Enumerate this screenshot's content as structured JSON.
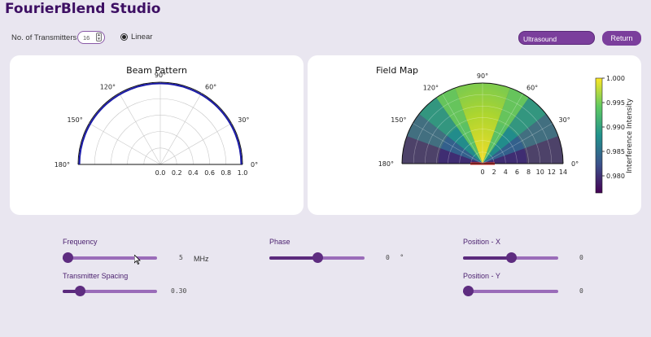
{
  "app": {
    "title": "FourierBlend Studio"
  },
  "toolbar": {
    "transmitters_label": "No. of Transmitters",
    "transmitters_value": "16",
    "layout_option": "Linear",
    "preset_value": "Ultrasound",
    "return_label": "Return"
  },
  "beam_panel": {
    "title": "Beam Pattern",
    "angle_labels": [
      "0°",
      "30°",
      "60°",
      "90°",
      "120°",
      "150°",
      "180°"
    ],
    "radial_labels": [
      "0.0",
      "0.2",
      "0.4",
      "0.6",
      "0.8",
      "1.0"
    ]
  },
  "field_panel": {
    "title": "Field Map",
    "angle_labels": [
      "0°",
      "30°",
      "60°",
      "90°",
      "120°",
      "150°",
      "180°"
    ],
    "radial_labels": [
      "0",
      "2",
      "4",
      "6",
      "8",
      "10",
      "12",
      "14"
    ],
    "colorbar_label": "Interference Intensity",
    "colorbar_ticks": [
      "1.000",
      "0.995",
      "0.990",
      "0.985",
      "0.980"
    ]
  },
  "controls": {
    "frequency": {
      "label": "Frequency",
      "value": "5",
      "unit": "MHz",
      "fraction": 0.05
    },
    "spacing": {
      "label": "Transmitter Spacing",
      "value": "0.30",
      "fraction": 0.18
    },
    "phase": {
      "label": "Phase",
      "value": "0",
      "unit": "°",
      "fraction": 0.5
    },
    "position_x": {
      "label": "Position - X",
      "value": "0",
      "fraction": 0.5
    },
    "position_y": {
      "label": "Position - Y",
      "value": "0",
      "fraction": 0.05
    }
  }
}
